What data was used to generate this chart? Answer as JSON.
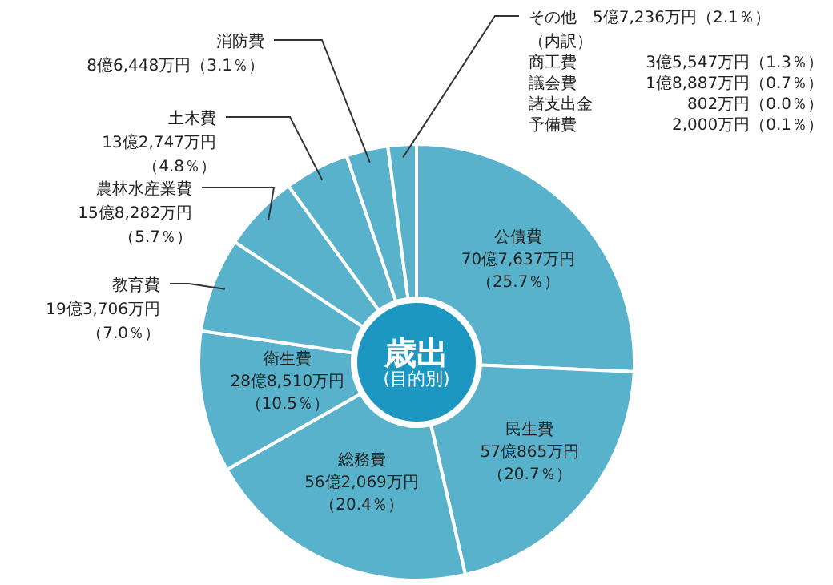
{
  "chart_data": {
    "type": "donut",
    "title": "歳出",
    "subtitle": "(目的別)",
    "categories": [
      "公債費",
      "民生費",
      "総務費",
      "衛生費",
      "教育費",
      "農林水産業費",
      "土木費",
      "消防費",
      "その他"
    ],
    "values": [
      25.7,
      20.7,
      20.4,
      10.5,
      7.0,
      5.7,
      4.8,
      3.1,
      2.1
    ],
    "value_labels": [
      "70億7,637万円（25.7％）",
      "57億865万円（20.7％）",
      "56億2,069万円（20.4％）",
      "28億8,510万円（10.5％）",
      "19億3,706万円（7.0％）",
      "15億8,282万円（5.7％）",
      "13億2,747万円（4.8％）",
      "8億6,448万円（3.1％）",
      "5億7,236万円（2.1％）"
    ],
    "colors": [
      "#58b2cb",
      "#58b2cb",
      "#58b2cb",
      "#58b2cb",
      "#58b2cb",
      "#58b2cb",
      "#58b2cb",
      "#58b2cb",
      "#58b2cb"
    ],
    "annotations": [
      "（内訳）",
      "商工費 3億5,547万円（1.3％）",
      "議会費 1億8,887万円（0.7％）",
      "諸支出金 802万円（0.0％）",
      "予備費 2,000万円（0.1％）"
    ]
  }
}
